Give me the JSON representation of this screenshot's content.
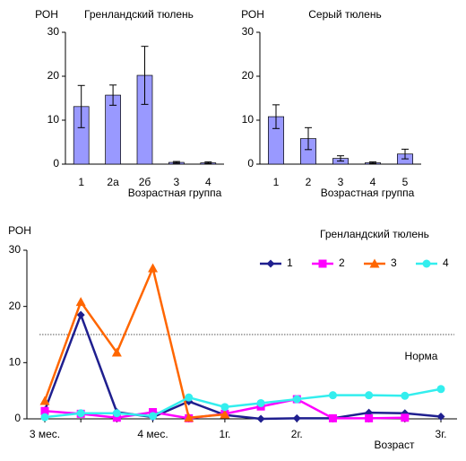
{
  "chart_data": [
    {
      "type": "bar",
      "title": "Гренландский тюлень",
      "ylabel": "РОН",
      "xlabel": "Возрастная группа",
      "categories": [
        "1",
        "2а",
        "2б",
        "3",
        "4"
      ],
      "values": [
        13.1,
        15.7,
        20.2,
        0.4,
        0.3
      ],
      "errors": [
        4.8,
        2.3,
        6.6,
        0.2,
        0.2
      ],
      "color": "#9999ff",
      "ylim": [
        0,
        30
      ],
      "yticks": [
        0,
        10,
        20,
        30
      ]
    },
    {
      "type": "bar",
      "title": "Серый тюлень",
      "ylabel": "РОН",
      "xlabel": "Возрастная группа",
      "categories": [
        "1",
        "2",
        "3",
        "4",
        "5"
      ],
      "values": [
        10.8,
        5.8,
        1.3,
        0.3,
        2.3
      ],
      "errors": [
        2.7,
        2.5,
        0.6,
        0.2,
        1.1
      ],
      "color": "#9999ff",
      "ylim": [
        0,
        30
      ],
      "yticks": [
        0,
        10,
        20,
        30
      ]
    },
    {
      "type": "line",
      "title": "Гренландский тюлень",
      "ylabel": "РОН",
      "xlabel": "Возраст",
      "categories": [
        "3 мес.",
        null,
        null,
        "4 мес.",
        null,
        "1г.",
        null,
        "2г.",
        null,
        null,
        null,
        "3г."
      ],
      "series": [
        {
          "name": "1",
          "color": "#1f1f8f",
          "marker": "diamond",
          "values": [
            1.5,
            18.5,
            1.2,
            0.3,
            3.1,
            0.7,
            0,
            0.1,
            0.1,
            1.1,
            1.0,
            0.4
          ]
        },
        {
          "name": "2",
          "color": "#ff00ff",
          "marker": "square",
          "values": [
            1.4,
            0.9,
            0.2,
            1.2,
            0.1,
            0.9,
            2.2,
            3.5,
            0.1,
            0.1,
            0.2,
            null
          ]
        },
        {
          "name": "3",
          "color": "#ff6600",
          "marker": "triangle",
          "values": [
            3.2,
            20.8,
            11.8,
            26.8,
            0.2,
            0.8,
            null,
            null,
            null,
            null,
            null,
            null
          ]
        },
        {
          "name": "4",
          "color": "#33eeee",
          "marker": "circle",
          "values": [
            0.3,
            1.0,
            1.0,
            0.5,
            3.8,
            2.1,
            2.8,
            3.5,
            4.2,
            4.2,
            4.1,
            5.3
          ]
        }
      ],
      "norm": 15,
      "norm_label": "Норма",
      "ylim": [
        0,
        30
      ],
      "yticks": [
        0,
        10,
        20,
        30
      ]
    }
  ]
}
